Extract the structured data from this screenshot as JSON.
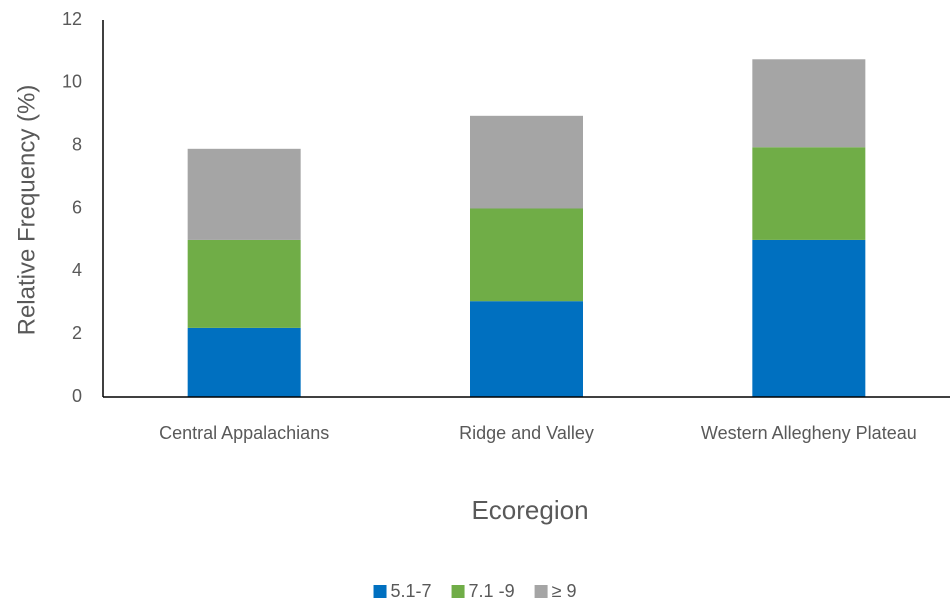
{
  "chart_data": {
    "type": "stacked-bar",
    "y_label": "Relative Frequency (%)",
    "x_label": "Ecoregion",
    "categories": [
      "Central Appalachians",
      "Ridge and Valley",
      "Western Allegheny Plateau"
    ],
    "series": [
      {
        "name": "5.1-7",
        "color": "#0070c0",
        "values": [
          2.2,
          3.05,
          5.0
        ]
      },
      {
        "name": "7.1 -9",
        "color": "#70ad47",
        "values": [
          2.8,
          2.95,
          2.95
        ]
      },
      {
        "name": "≥ 9",
        "color": "#a5a5a5",
        "values": [
          2.9,
          2.95,
          2.8
        ]
      }
    ],
    "ylim": [
      0,
      12
    ],
    "yticks": [
      0,
      2,
      4,
      6,
      8,
      10,
      12
    ],
    "grid": false,
    "legend": "bottom"
  }
}
